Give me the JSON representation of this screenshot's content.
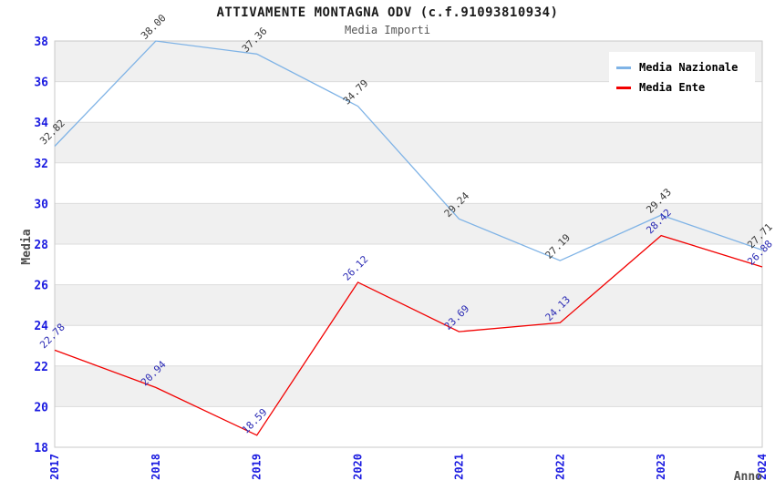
{
  "page": {
    "title": "ATTIVAMENTE MONTAGNA ODV (c.f.91093810934)",
    "subtitle": "Media Importi"
  },
  "chart_data": {
    "type": "line",
    "title": "ATTIVAMENTE MONTAGNA ODV (c.f.91093810934)",
    "subtitle": "Media Importi",
    "xlabel": "Anno",
    "ylabel": "Media",
    "categories": [
      "2017",
      "2018",
      "2019",
      "2020",
      "2021",
      "2022",
      "2023",
      "2024"
    ],
    "ylim": [
      18,
      38
    ],
    "ytick_step": 2,
    "grid": "horizontal-only",
    "band_fill": "alternating horizontal stripes, gray on top band",
    "legend_position": "top-right",
    "series": [
      {
        "name": "Media Nazionale",
        "color": "#7fb3e6",
        "label_color": "#3a3a3a",
        "values": [
          32.82,
          38.0,
          37.36,
          34.79,
          29.24,
          27.19,
          29.43,
          27.71
        ]
      },
      {
        "name": "Media Ente",
        "color": "#f20000",
        "label_color": "#2b2bb4",
        "values": [
          22.78,
          20.94,
          18.59,
          26.12,
          23.69,
          24.13,
          28.42,
          26.88
        ]
      }
    ],
    "point_label_format": "two decimals, rotated 45 degrees above each point",
    "colors": {
      "axis_tick": "#1a1ae0",
      "axis_title": "#4d4d4d",
      "band": "#f0f0f0",
      "gridline": "#dcdcdc",
      "plot_border": "#c9c9c9",
      "title_text": "#1a1a1a",
      "subtitle_text": "#555555",
      "legend_text": "#000000",
      "background": "#ffffff"
    }
  }
}
